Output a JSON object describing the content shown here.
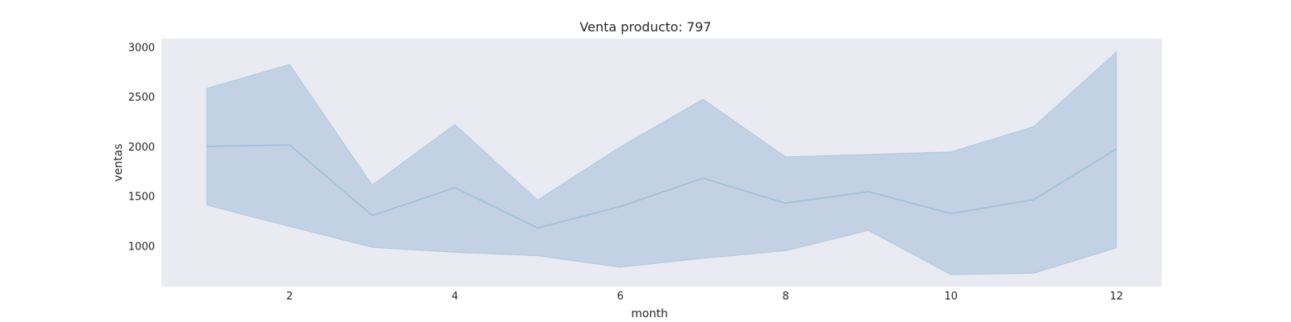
{
  "chart_data": {
    "type": "line",
    "title": "Venta producto: 797",
    "xlabel": "month",
    "ylabel": "ventas",
    "x": [
      1,
      2,
      3,
      4,
      5,
      6,
      7,
      8,
      9,
      10,
      11,
      12
    ],
    "series": [
      {
        "values": [
          2000,
          2015,
          1305,
          1585,
          1180,
          1395,
          1680,
          1430,
          1545,
          1325,
          1465,
          1975
        ],
        "upper": [
          2585,
          2825,
          1610,
          2220,
          1460,
          1995,
          2475,
          1895,
          1920,
          1945,
          2200,
          2950
        ],
        "lower": [
          1410,
          1195,
          985,
          935,
          900,
          785,
          875,
          950,
          1155,
          710,
          725,
          980
        ]
      }
    ],
    "xlim": [
      0.45,
      12.55
    ],
    "ylim": [
      590,
      3085
    ],
    "xticks": [
      2,
      4,
      6,
      8,
      10,
      12
    ],
    "yticks": [
      1000,
      1500,
      2000,
      2500,
      3000
    ],
    "grid": false,
    "colors": {
      "background": "#eaeaf2",
      "band": "#c2d2e4",
      "line": "#a1c0dc"
    }
  }
}
